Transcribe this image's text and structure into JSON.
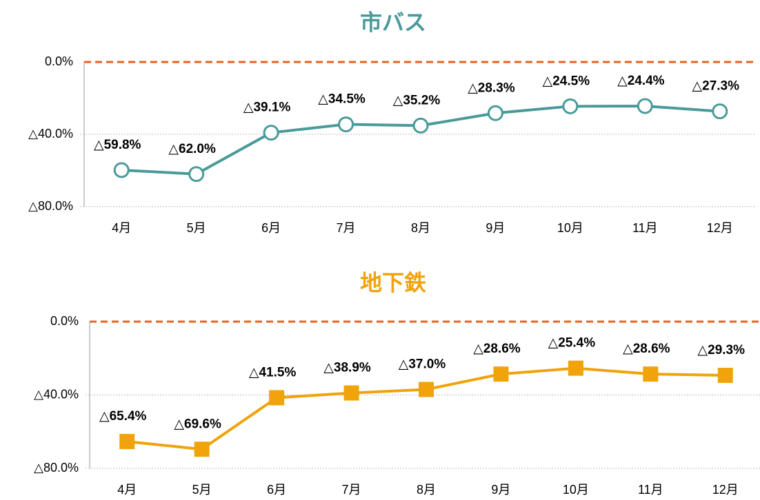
{
  "chart_data": [
    {
      "type": "line",
      "title": "市バス",
      "categories": [
        "4月",
        "5月",
        "6月",
        "7月",
        "8月",
        "9月",
        "10月",
        "11月",
        "12月"
      ],
      "values": [
        -59.8,
        -62.0,
        -39.1,
        -34.5,
        -35.2,
        -28.3,
        -24.5,
        -24.4,
        -27.3
      ],
      "value_labels": [
        "△59.8%",
        "△62.0%",
        "△39.1%",
        "△34.5%",
        "△35.2%",
        "△28.3%",
        "△24.5%",
        "△24.4%",
        "△27.3%"
      ],
      "color": "#4a9a9a",
      "marker": "circle",
      "ylim": [
        -80,
        0
      ],
      "yticks": [
        {
          "value": 0,
          "label": "0.0%"
        },
        {
          "value": -40,
          "label": "△40.0%"
        },
        {
          "value": -80,
          "label": "△80.0%"
        }
      ],
      "grid": true
    },
    {
      "type": "line",
      "title": "地下鉄",
      "categories": [
        "4月",
        "5月",
        "6月",
        "7月",
        "8月",
        "9月",
        "10月",
        "11月",
        "12月"
      ],
      "values": [
        -65.4,
        -69.6,
        -41.5,
        -38.9,
        -37.0,
        -28.6,
        -25.4,
        -28.6,
        -29.3
      ],
      "value_labels": [
        "△65.4%",
        "△69.6%",
        "△41.5%",
        "△38.9%",
        "△37.0%",
        "△28.6%",
        "△25.4%",
        "△28.6%",
        "△29.3%"
      ],
      "color": "#f0a30a",
      "marker": "square",
      "ylim": [
        -80,
        0
      ],
      "yticks": [
        {
          "value": 0,
          "label": "0.0%"
        },
        {
          "value": -40,
          "label": "△40.0%"
        },
        {
          "value": -80,
          "label": "△80.0%"
        }
      ],
      "grid": true
    }
  ]
}
